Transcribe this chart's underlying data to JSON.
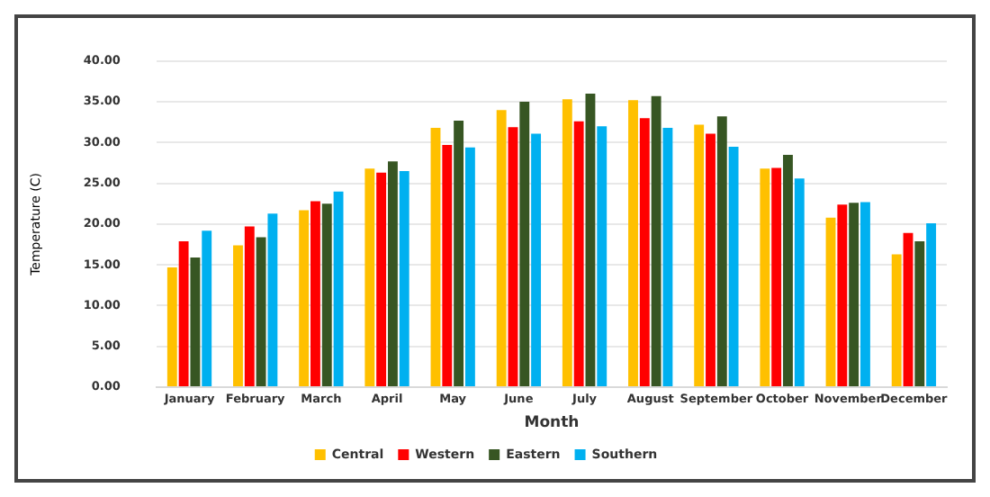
{
  "chart_data": {
    "type": "bar",
    "xlabel": "Month",
    "ylabel": "Temperature (C)",
    "categories": [
      "January",
      "February",
      "March",
      "April",
      "May",
      "June",
      "July",
      "August",
      "September",
      "October",
      "November",
      "December"
    ],
    "series": [
      {
        "name": "Central",
        "color": "#ffc000",
        "values": [
          14.7,
          17.4,
          21.7,
          26.8,
          31.8,
          34.0,
          35.3,
          35.2,
          32.2,
          26.8,
          20.8,
          16.3
        ]
      },
      {
        "name": "Western",
        "color": "#ff0000",
        "values": [
          17.9,
          19.7,
          22.8,
          26.3,
          29.7,
          31.9,
          32.6,
          33.0,
          31.1,
          26.9,
          22.4,
          18.9
        ]
      },
      {
        "name": "Eastern",
        "color": "#375623",
        "values": [
          15.9,
          18.4,
          22.5,
          27.7,
          32.7,
          35.0,
          36.0,
          35.7,
          33.2,
          28.5,
          22.6,
          17.9
        ]
      },
      {
        "name": "Southern",
        "color": "#00b0f0",
        "values": [
          19.2,
          21.3,
          24.0,
          26.5,
          29.4,
          31.1,
          32.0,
          31.8,
          29.5,
          25.6,
          22.7,
          20.1
        ]
      }
    ],
    "ylim": [
      0,
      40
    ],
    "yticks": [
      {
        "value": 0,
        "label": "0.00"
      },
      {
        "value": 5,
        "label": "5.00"
      },
      {
        "value": 10,
        "label": "10.00"
      },
      {
        "value": 15,
        "label": "15.00"
      },
      {
        "value": 20,
        "label": "20.00"
      },
      {
        "value": 25,
        "label": "25.00"
      },
      {
        "value": 30,
        "label": "30.00"
      },
      {
        "value": 35,
        "label": "35.00"
      },
      {
        "value": 40,
        "label": "40.00"
      }
    ],
    "grid": "y",
    "legend": "bottom"
  }
}
